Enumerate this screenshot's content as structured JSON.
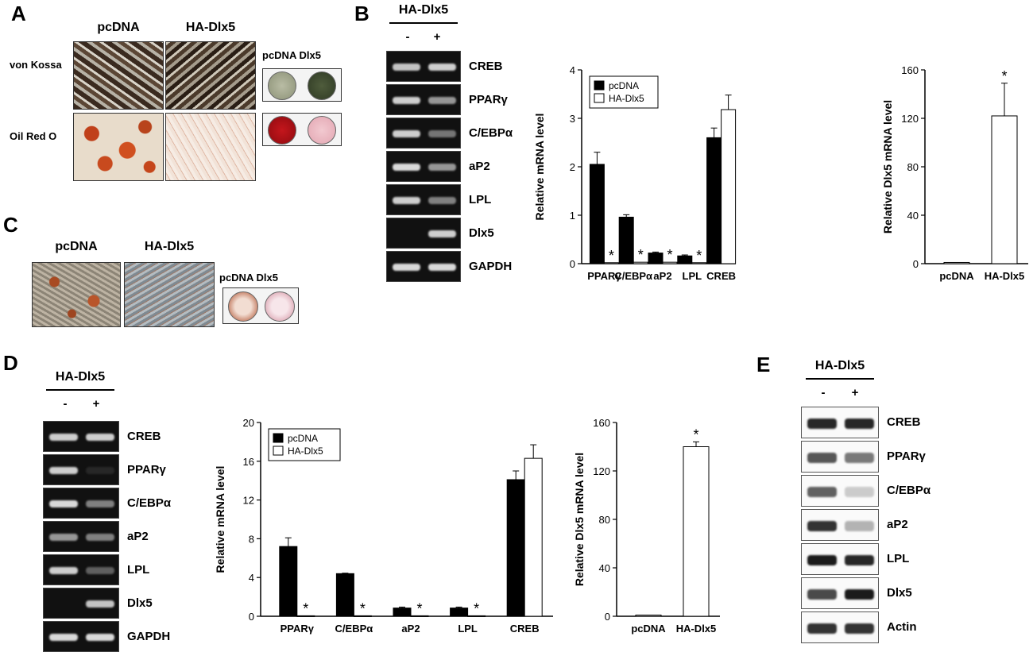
{
  "panels": {
    "A": {
      "letter": "A",
      "col_pcdna": "pcDNA",
      "col_hadlx5": "HA-Dlx5",
      "row_vonkossa": "von Kossa",
      "row_oilred": "Oil Red O",
      "dish_label": "pcDNA Dlx5"
    },
    "B": {
      "letter": "B",
      "gel_header": "HA-Dlx5",
      "lane_minus": "-",
      "lane_plus": "+",
      "bands": [
        "CREB",
        "PPARγ",
        "C/EBPα",
        "aP2",
        "LPL",
        "Dlx5",
        "GAPDH"
      ]
    },
    "C": {
      "letter": "C",
      "col_pcdna": "pcDNA",
      "col_hadlx5": "HA-Dlx5",
      "dish_label": "pcDNA Dlx5"
    },
    "D": {
      "letter": "D",
      "gel_header": "HA-Dlx5",
      "lane_minus": "-",
      "lane_plus": "+",
      "bands": [
        "CREB",
        "PPARγ",
        "C/EBPα",
        "aP2",
        "LPL",
        "Dlx5",
        "GAPDH"
      ]
    },
    "E": {
      "letter": "E",
      "gel_header": "HA-Dlx5",
      "lane_minus": "-",
      "lane_plus": "+",
      "bands": [
        "CREB",
        "PPARγ",
        "C/EBPα",
        "aP2",
        "LPL",
        "Dlx5",
        "Actin"
      ]
    }
  },
  "chart_data": [
    {
      "id": "B-genes",
      "type": "bar",
      "ylabel": "Relative mRNA level",
      "ylim": [
        0,
        4
      ],
      "yticks": [
        "0",
        "1",
        "2",
        "3",
        "4"
      ],
      "categories": [
        "PPARγ",
        "C/EBPα",
        "aP2",
        "LPL",
        "CREB"
      ],
      "series": [
        {
          "name": "pcDNA",
          "color": "#000000",
          "values": [
            2.05,
            0.96,
            0.22,
            0.16,
            2.6
          ],
          "errors": [
            0.25,
            0.05,
            0.02,
            0.02,
            0.2
          ]
        },
        {
          "name": "HA-Dlx5",
          "color": "#ffffff",
          "values": [
            0.02,
            0.03,
            0.03,
            0.02,
            3.18
          ],
          "errors": [
            0,
            0,
            0,
            0,
            0.3
          ]
        }
      ],
      "star": "*",
      "star_on": [
        [
          1,
          0
        ],
        [
          1,
          1
        ],
        [
          1,
          2
        ],
        [
          1,
          3
        ]
      ]
    },
    {
      "id": "B-dlx5",
      "type": "bar",
      "ylabel": "Relative Dlx5 mRNA level",
      "ylim": [
        0,
        160
      ],
      "yticks": [
        "0",
        "40",
        "80",
        "120",
        "160"
      ],
      "categories": [
        "pcDNA",
        "HA-Dlx5"
      ],
      "series": [
        {
          "name": "",
          "color": "#ffffff",
          "values": [
            1,
            122
          ],
          "errors": [
            0,
            27
          ]
        }
      ],
      "star": "*",
      "star_on": [
        [
          0,
          1
        ]
      ]
    },
    {
      "id": "D-genes",
      "type": "bar",
      "ylabel": "Relative mRNA level",
      "ylim": [
        0,
        20
      ],
      "yticks": [
        "0",
        "4",
        "8",
        "12",
        "16",
        "20"
      ],
      "categories": [
        "PPARγ",
        "C/EBPα",
        "aP2",
        "LPL",
        "CREB"
      ],
      "series": [
        {
          "name": "pcDNA",
          "color": "#000000",
          "values": [
            7.2,
            4.4,
            0.85,
            0.85,
            14.1
          ],
          "errors": [
            0.9,
            0.05,
            0.1,
            0.1,
            0.9
          ]
        },
        {
          "name": "HA-Dlx5",
          "color": "#ffffff",
          "values": [
            0.05,
            0.05,
            0.05,
            0.05,
            16.3
          ],
          "errors": [
            0,
            0,
            0,
            0,
            1.4
          ]
        }
      ],
      "star": "*",
      "star_on": [
        [
          1,
          0
        ],
        [
          1,
          1
        ],
        [
          1,
          2
        ],
        [
          1,
          3
        ]
      ]
    },
    {
      "id": "D-dlx5",
      "type": "bar",
      "ylabel": "Relative Dlx5 mRNA level",
      "ylim": [
        0,
        160
      ],
      "yticks": [
        "0",
        "40",
        "80",
        "120",
        "160"
      ],
      "categories": [
        "pcDNA",
        "HA-Dlx5"
      ],
      "series": [
        {
          "name": "",
          "color": "#ffffff",
          "values": [
            1,
            140
          ],
          "errors": [
            0,
            4
          ]
        }
      ],
      "star": "*",
      "star_on": [
        [
          0,
          1
        ]
      ]
    }
  ]
}
